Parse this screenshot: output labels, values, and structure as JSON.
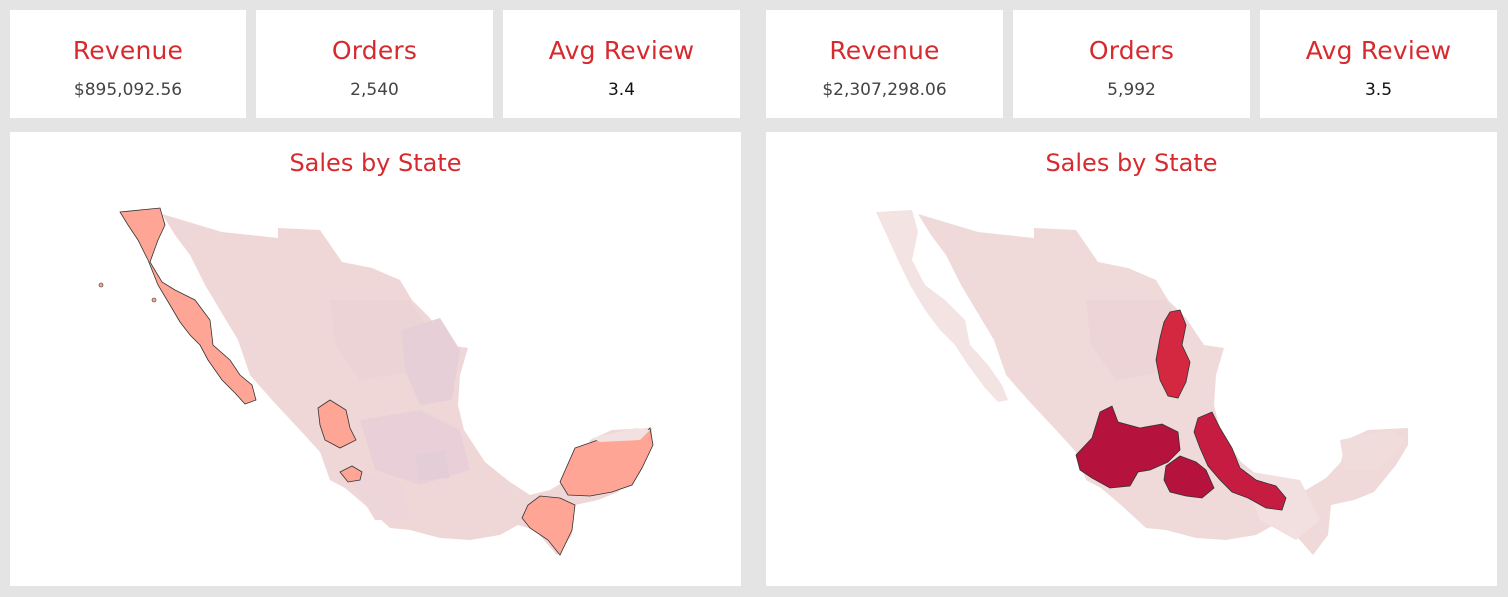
{
  "dashboards": [
    {
      "kpis": [
        {
          "title": "Revenue",
          "value": "$895,092.56"
        },
        {
          "title": "Orders",
          "value": "2,540"
        },
        {
          "title": "Avg Review",
          "value": "3.4"
        }
      ],
      "map": {
        "title": "Sales by State",
        "base_color": "#f0d7d7",
        "highlight_color": "#ffa595",
        "highlighted_regions": [
          "baja-california-peninsula",
          "durango",
          "colima",
          "yucatan-peninsula",
          "chiapas"
        ]
      }
    },
    {
      "kpis": [
        {
          "title": "Revenue",
          "value": "$2,307,298.06"
        },
        {
          "title": "Orders",
          "value": "5,992"
        },
        {
          "title": "Avg Review",
          "value": "3.5"
        }
      ],
      "map": {
        "title": "Sales by State",
        "base_color": "#efd9d9",
        "highlight_color": "#b5123d",
        "mid_color": "#d42840",
        "highlighted_regions": [
          "nuevo-leon",
          "jalisco",
          "mexico",
          "veracruz"
        ]
      }
    }
  ]
}
